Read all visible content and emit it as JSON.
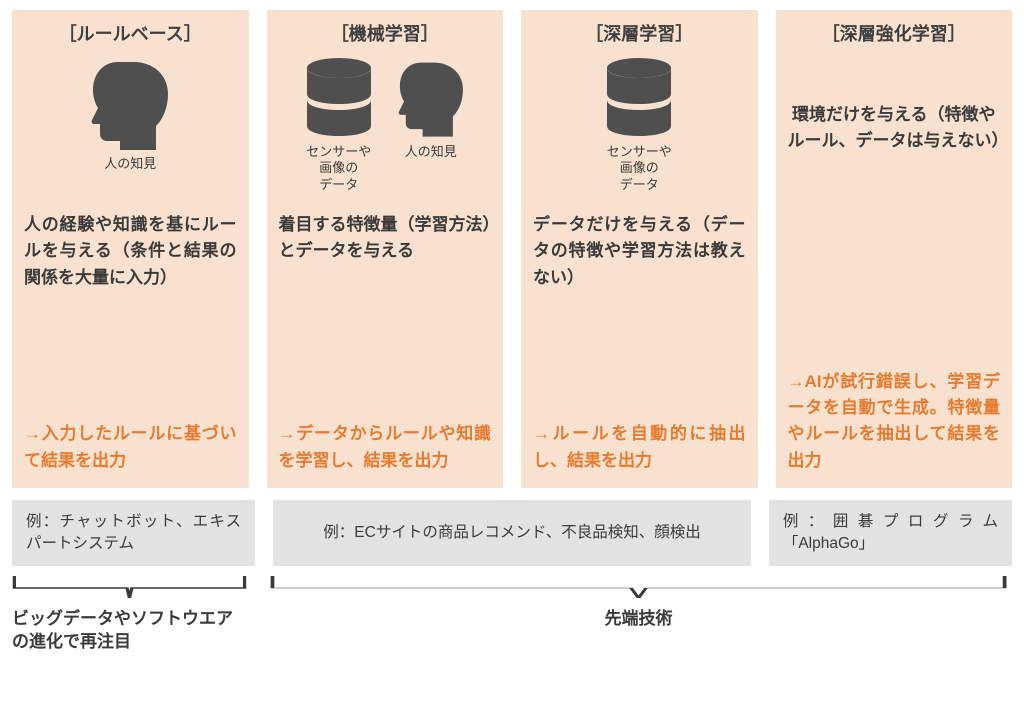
{
  "style": {
    "card_bg": "#f8e2cf",
    "example_bg": "#e2e2e2",
    "title_color": "#3f3f3f",
    "text_color": "#3a3a3a",
    "accent": "#e87a2e",
    "icon_fill": "#4f4f4f",
    "bracket_stroke": "#3a3a3a"
  },
  "columns": [
    {
      "title": "［ルールベース］",
      "icons": [
        {
          "type": "head",
          "caption": "人の知見"
        }
      ],
      "desc": "人の経験や知識を基にルールを与える（条件と結果の関係を大量に入力）",
      "result": "→入力したルールに基づいて結果を出力"
    },
    {
      "title": "［機械学習］",
      "icons": [
        {
          "type": "db",
          "caption": "センサーや\n画像の\nデータ"
        },
        {
          "type": "head",
          "caption": "人の知見"
        }
      ],
      "desc": "着目する特徴量（学習方法）とデータを与える",
      "result": "→データからルールや知識を学習し、結果を出力"
    },
    {
      "title": "［深層学習］",
      "icons": [
        {
          "type": "db",
          "caption": "センサーや\n画像の\nデータ"
        }
      ],
      "desc": "データだけを与える（データの特徴や学習方法は教えない）",
      "result": "→ルールを自動的に抽出し、結果を出力"
    },
    {
      "title": "［深層強化学習］",
      "icons": [],
      "env_text": "環境だけを与える（特徴やルール、データは与えない）",
      "desc": "",
      "result": "→AIが試行錯誤し、学習データを自動で生成。特徴量やルールを抽出して結果を出力"
    }
  ],
  "examples": {
    "ex1": "例：チャットボット、エキスパートシステム",
    "ex2": "例：ECサイトの商品レコメンド、不良品検知、顔検出",
    "ex3": "例：囲碁プログラム「AlphaGo」"
  },
  "brackets": {
    "b1": "ビッグデータやソフトウエアの進化で再注目",
    "b2": "先端技術"
  }
}
